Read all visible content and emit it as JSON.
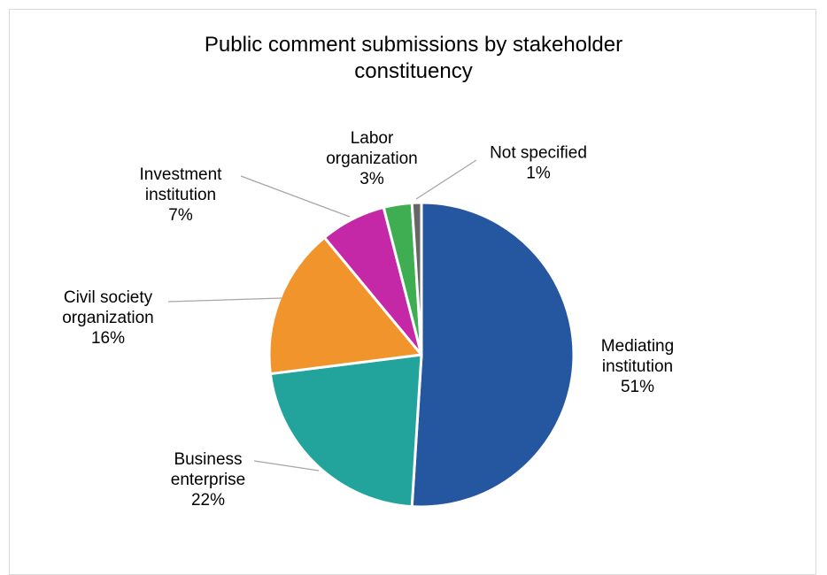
{
  "chart_data": {
    "type": "pie",
    "title_lines": [
      "Public comment submissions by stakeholder",
      "constituency"
    ],
    "slices": [
      {
        "label_lines": [
          "Mediating",
          "institution"
        ],
        "pct_label": "51%",
        "value": 51,
        "color": "#2556a0"
      },
      {
        "label_lines": [
          "Business",
          "enterprise"
        ],
        "pct_label": "22%",
        "value": 22,
        "color": "#22a39b"
      },
      {
        "label_lines": [
          "Civil society",
          "organization"
        ],
        "pct_label": "16%",
        "value": 16,
        "color": "#f0942b"
      },
      {
        "label_lines": [
          "Investment",
          "institution"
        ],
        "pct_label": "7%",
        "value": 7,
        "color": "#c428a6"
      },
      {
        "label_lines": [
          "Labor",
          "organization"
        ],
        "pct_label": "3%",
        "value": 3,
        "color": "#3fae52"
      },
      {
        "label_lines": [
          "Not specified"
        ],
        "pct_label": "1%",
        "value": 1,
        "color": "#666666"
      }
    ],
    "legend": "none"
  }
}
